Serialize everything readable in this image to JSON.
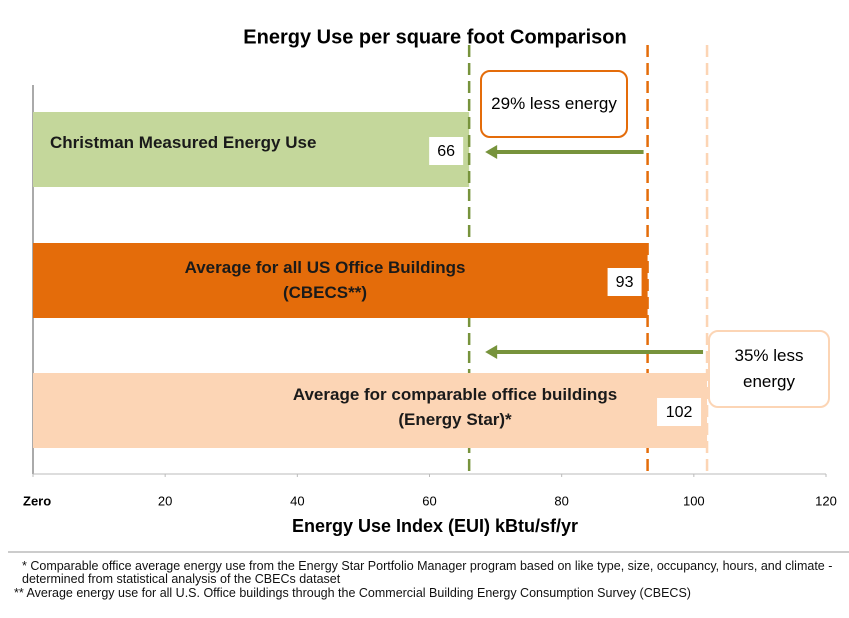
{
  "chart_data": {
    "type": "barh",
    "title": "Energy Use per square foot Comparison",
    "x_label": "Energy Use Index (EUI) kBtu/sf/yr",
    "categories": [
      "Christman Measured Energy Use",
      "Average for all US Office Buildings (CBECS**)",
      "Average for comparable office buildings (Energy Star)*"
    ],
    "values": [
      66,
      93,
      102
    ],
    "colors": [
      "#c4d79b",
      "#e46c0a",
      "#fcd5b5"
    ],
    "xlim": [
      0,
      120
    ],
    "xticks": [
      {
        "value": 0,
        "label": "Zero"
      },
      20,
      40,
      60,
      80,
      100,
      120
    ],
    "annotations": [
      "29% less energy",
      "35% less energy"
    ],
    "footnotes": [
      "* Comparable office average energy use from the Energy Star Portfolio Manager program based on like type, size, occupancy, hours, and climate - determined from statistical analysis of the CBECs dataset",
      "** Average energy use for all U.S. Office buildings through the Commercial Building Energy Consumption Survey (CBECS)"
    ]
  }
}
